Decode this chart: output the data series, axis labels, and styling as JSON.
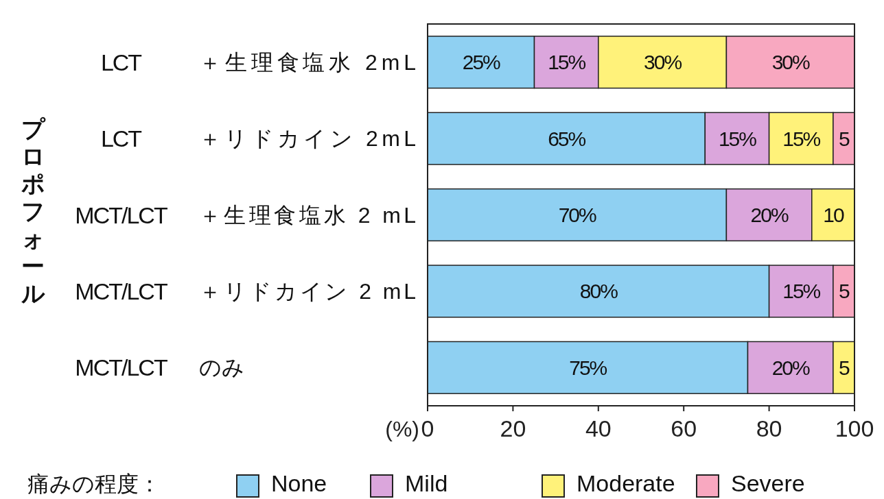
{
  "chart_data": {
    "type": "bar",
    "orientation": "horizontal",
    "stacked": true,
    "annotations": [
      "プロポフォール"
    ],
    "xlabel": "(%)",
    "legend_title": "痛みの程度：",
    "legend": "bottom",
    "grid": false,
    "xlim": [
      0,
      100
    ],
    "xticks": [
      0,
      20,
      40,
      60,
      80,
      100
    ],
    "categories": [
      "LCT ＋生理食塩水 2mL",
      "LCT ＋リドカイン 2mL",
      "MCT/LCT ＋生理食塩水 2 mL",
      "MCT/LCT ＋リドカイン 2 mL",
      "MCT/LCT のみ"
    ],
    "series": [
      {
        "name": "None",
        "color": "#8fd0f2",
        "values": [
          25,
          65,
          70,
          80,
          75
        ],
        "value_labels": [
          "25%",
          "65%",
          "70%",
          "80%",
          "75%"
        ]
      },
      {
        "name": "Mild",
        "color": "#dba6dc",
        "values": [
          15,
          15,
          20,
          15,
          20
        ],
        "value_labels": [
          "15%",
          "15%",
          "20%",
          "15%",
          "20%"
        ]
      },
      {
        "name": "Moderate",
        "color": "#fff27a",
        "values": [
          30,
          15,
          10,
          0,
          5
        ],
        "value_labels": [
          "30%",
          "15%",
          "10",
          null,
          "5"
        ]
      },
      {
        "name": "Severe",
        "color": "#f8a8c0",
        "values": [
          30,
          5,
          0,
          5,
          0
        ],
        "value_labels": [
          "30%",
          "5",
          null,
          "5",
          null
        ]
      }
    ]
  }
}
